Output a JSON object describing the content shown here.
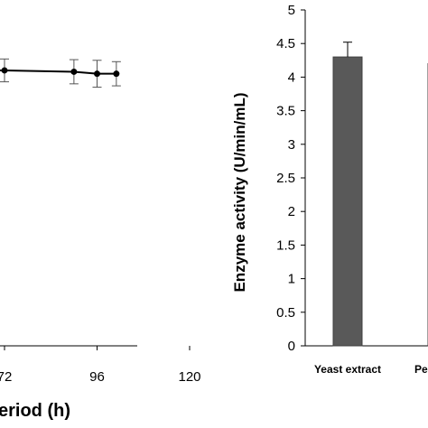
{
  "chart_data": [
    {
      "type": "line",
      "xlabel": "eriod (h)",
      "x_ticks": [
        "72",
        "96",
        "120"
      ],
      "x_tick_values": [
        72,
        96,
        120
      ],
      "x": [
        72,
        90,
        96,
        101
      ],
      "y": [
        4.1,
        4.08,
        4.05,
        4.05
      ],
      "y_err": [
        0.17,
        0.18,
        0.2,
        0.18
      ],
      "ylim": [
        0,
        5
      ],
      "grid": false
    },
    {
      "type": "bar",
      "ylabel": "Enzyme activity (U/min/mL)",
      "ylim": [
        0,
        5
      ],
      "y_ticks": [
        "0",
        "0.5",
        "1",
        "1.5",
        "2",
        "2.5",
        "3",
        "3.5",
        "4",
        "4.5",
        "5"
      ],
      "categories": [
        "Yeast extract",
        "Pe"
      ],
      "values": [
        4.3,
        4.2
      ],
      "errors": [
        0.22,
        0
      ],
      "colors": [
        "#595959",
        "#ffffff"
      ],
      "grid": false
    }
  ]
}
